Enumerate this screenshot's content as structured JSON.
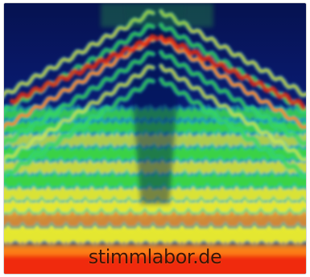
{
  "image": {
    "kind": "spectrogram",
    "watermark_text": "stimmlabor.de",
    "colors": {
      "deep_blue": "#081a6e",
      "blue": "#1e50c8",
      "cyan": "#21c8c8",
      "green": "#3ddc3c",
      "yellow": "#f0ec28",
      "orange": "#ff8a1a",
      "red": "#f02a10"
    }
  }
}
